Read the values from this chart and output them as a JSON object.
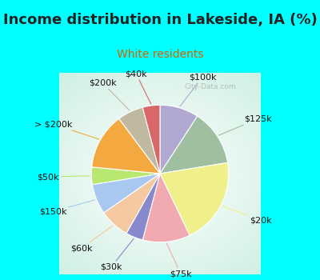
{
  "title": "Income distribution in Lakeside, IA (%)",
  "subtitle": "White residents",
  "bg_cyan": "#00FFFF",
  "labels": [
    "$100k",
    "$125k",
    "$20k",
    "$75k",
    "$30k",
    "$60k",
    "$150k",
    "$50k",
    "> $200k",
    "$200k",
    "$40k"
  ],
  "sizes": [
    9,
    13,
    20,
    11,
    4,
    7,
    7,
    4,
    13,
    6,
    4
  ],
  "colors": [
    "#b0a8d0",
    "#9fbfa0",
    "#f0f08a",
    "#f0aab0",
    "#8888cc",
    "#f4c8a0",
    "#a8c8f0",
    "#b8e870",
    "#f4a840",
    "#c0b8a0",
    "#d86868"
  ],
  "label_fontsize": 8,
  "title_fontsize": 13,
  "subtitle_fontsize": 10,
  "wedge_linewidth": 0.8,
  "wedge_edgecolor": "white"
}
